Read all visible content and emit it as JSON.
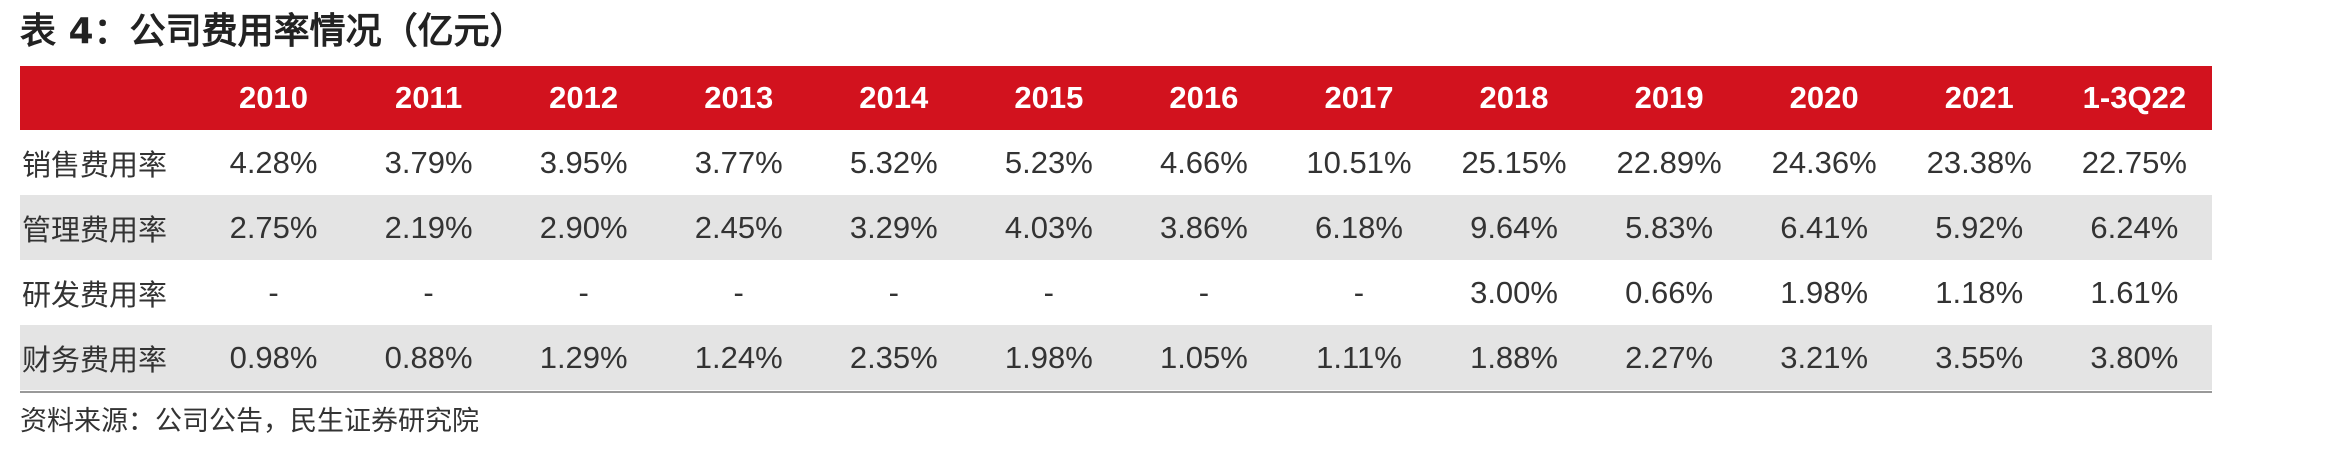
{
  "title": "表 4：公司费用率情况（亿元）",
  "table": {
    "header": [
      "",
      "2010",
      "2011",
      "2012",
      "2013",
      "2014",
      "2015",
      "2016",
      "2017",
      "2018",
      "2019",
      "2020",
      "2021",
      "1-3Q22"
    ],
    "rows": [
      {
        "label": "销售费用率",
        "values": [
          "4.28%",
          "3.79%",
          "3.95%",
          "3.77%",
          "5.32%",
          "5.23%",
          "4.66%",
          "10.51%",
          "25.15%",
          "22.89%",
          "24.36%",
          "23.38%",
          "22.75%"
        ]
      },
      {
        "label": "管理费用率",
        "values": [
          "2.75%",
          "2.19%",
          "2.90%",
          "2.45%",
          "3.29%",
          "4.03%",
          "3.86%",
          "6.18%",
          "9.64%",
          "5.83%",
          "6.41%",
          "5.92%",
          "6.24%"
        ]
      },
      {
        "label": "研发费用率",
        "values": [
          "-",
          "-",
          "-",
          "-",
          "-",
          "-",
          "-",
          "-",
          "3.00%",
          "0.66%",
          "1.98%",
          "1.18%",
          "1.61%"
        ]
      },
      {
        "label": "财务费用率",
        "values": [
          "0.98%",
          "0.88%",
          "1.29%",
          "1.24%",
          "2.35%",
          "1.98%",
          "1.05%",
          "1.11%",
          "1.88%",
          "2.27%",
          "3.21%",
          "3.55%",
          "3.80%"
        ]
      }
    ]
  },
  "source": "资料来源：公司公告，民生证券研究院",
  "colors": {
    "header_background": "#d2121e",
    "header_text": "#ffffff",
    "shaded_row": "#e4e4e4",
    "text": "#333333"
  }
}
